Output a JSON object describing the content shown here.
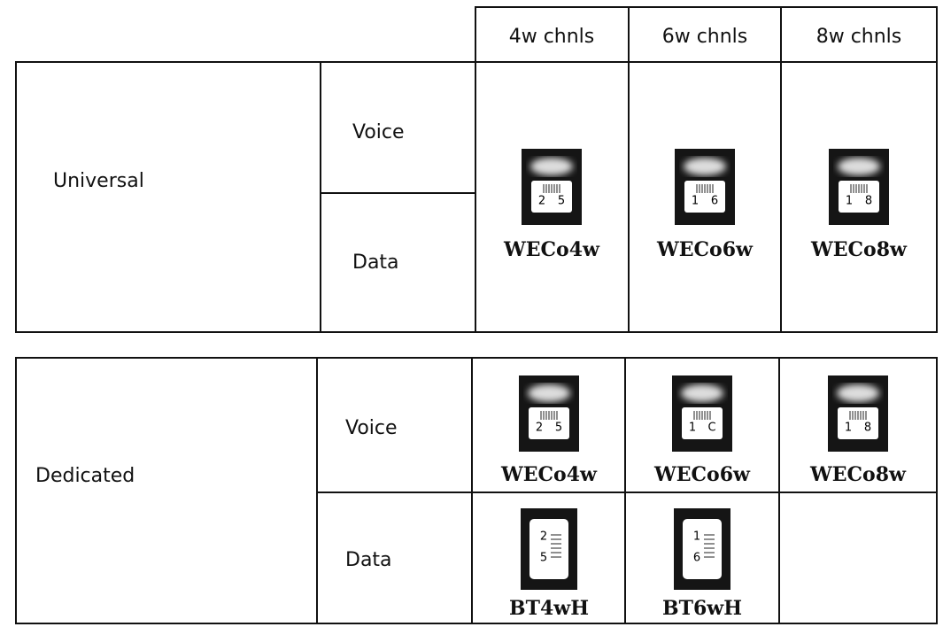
{
  "header": {
    "columns": [
      "4w chnls",
      "6w chnls",
      "8w chnls"
    ]
  },
  "universal": {
    "label": "Universal",
    "rows": [
      "Voice",
      "Data"
    ],
    "jacks": [
      {
        "name": "WECo4w",
        "pins": [
          "2",
          "5"
        ]
      },
      {
        "name": "WECo6w",
        "pins": [
          "1",
          "6"
        ]
      },
      {
        "name": "WECo8w",
        "pins": [
          "1",
          "8"
        ]
      }
    ]
  },
  "dedicated": {
    "label": "Dedicated",
    "rows": [
      "Voice",
      "Data"
    ],
    "voice_jacks": [
      {
        "name": "WECo4w",
        "pins": [
          "2",
          "5"
        ]
      },
      {
        "name": "WECo6w",
        "pins": [
          "1",
          "C"
        ]
      },
      {
        "name": "WECo8w",
        "pins": [
          "1",
          "8"
        ]
      }
    ],
    "data_jacks": [
      {
        "name": "BT4wH",
        "pins": [
          "2",
          "5"
        ]
      },
      {
        "name": "BT6wH",
        "pins": [
          "1",
          "6"
        ]
      }
    ]
  }
}
